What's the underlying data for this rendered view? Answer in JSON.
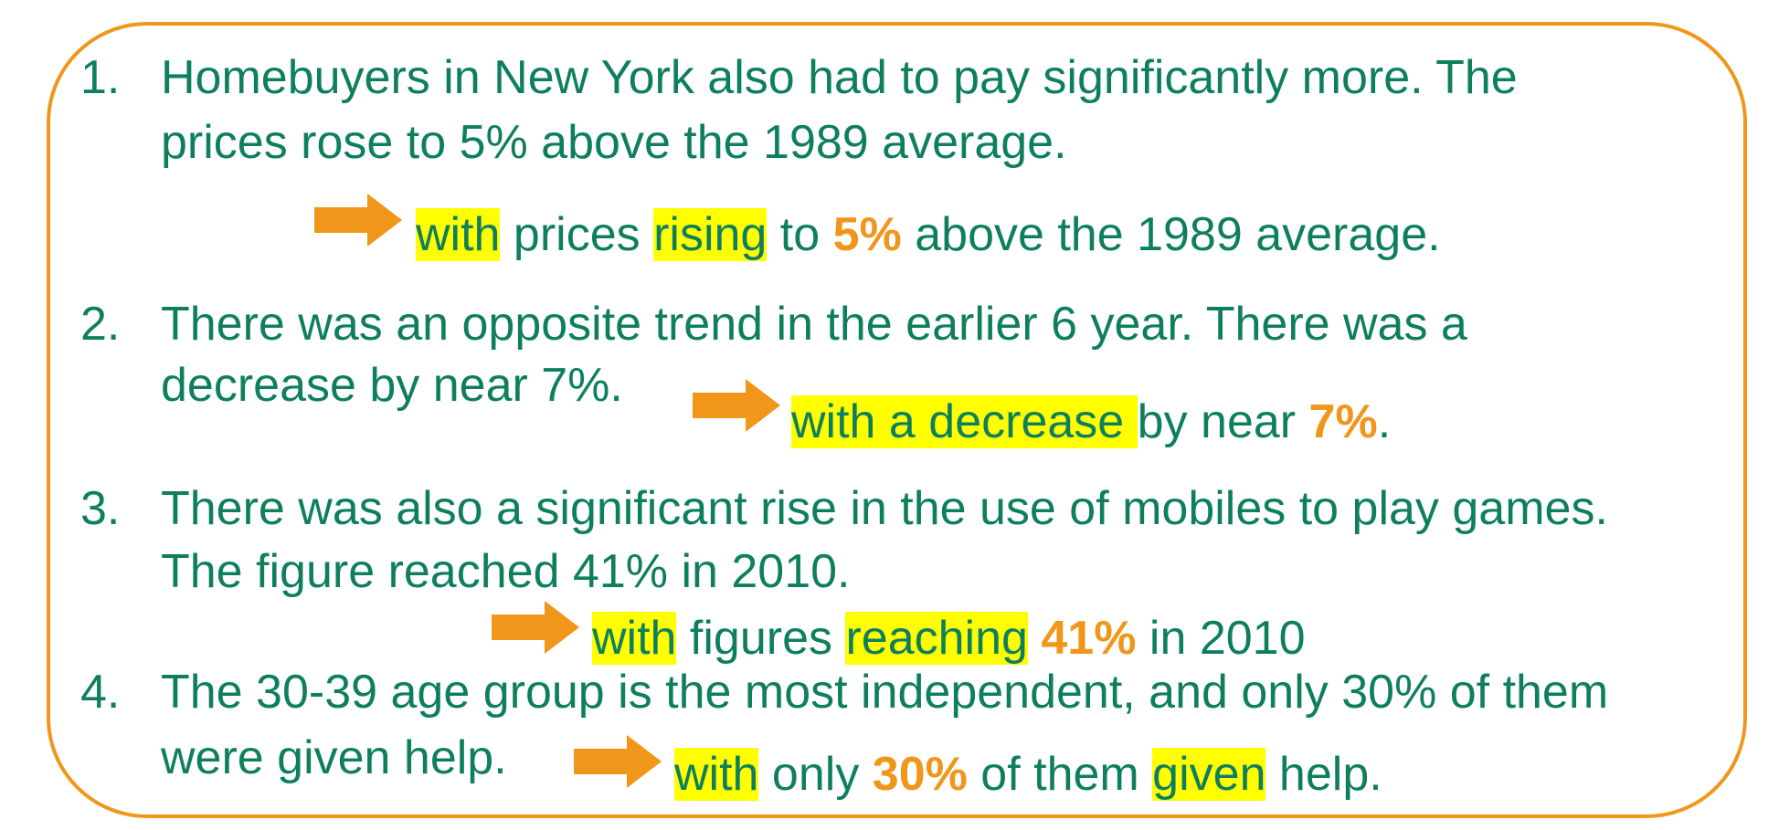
{
  "colors": {
    "text": "#0E7F5E",
    "accent": "#F0961A",
    "highlight": "#FFFF00",
    "border": "#F0961A"
  },
  "icons": {
    "arrow": "right-arrow-icon"
  },
  "items": [
    {
      "number": "1.",
      "line1": "Homebuyers in New York also had to pay significantly more. The",
      "line2": "prices rose to 5% above the 1989 average.",
      "rewrite": {
        "w1": "with",
        "t1": " prices ",
        "w2": "rising",
        "t2": " to ",
        "pct": "5%",
        "t3": " above the 1989 average."
      }
    },
    {
      "number": "2.",
      "line1": "There was an opposite trend in the earlier 6 year. There was a",
      "line2": "decrease by near 7%.",
      "rewrite": {
        "w1": "with a decrease ",
        "t1": "by near ",
        "pct": "7%",
        "t2": "."
      }
    },
    {
      "number": "3.",
      "line1": "There was also a significant rise in the use of mobiles to play games.",
      "line2": "The figure reached 41% in 2010.",
      "rewrite": {
        "w1": "with",
        "t1": " figures ",
        "w2": "reaching",
        "t2": " ",
        "pct": "41%",
        "t3": " in 2010"
      }
    },
    {
      "number": "4.",
      "line1": "The 30-39 age group is the most independent, and only 30% of them",
      "line2": "were given help.",
      "rewrite": {
        "w1": "with",
        "t1": " only ",
        "pct": "30%",
        "t2": " of them ",
        "w2": "given",
        "t3": " help."
      }
    }
  ]
}
